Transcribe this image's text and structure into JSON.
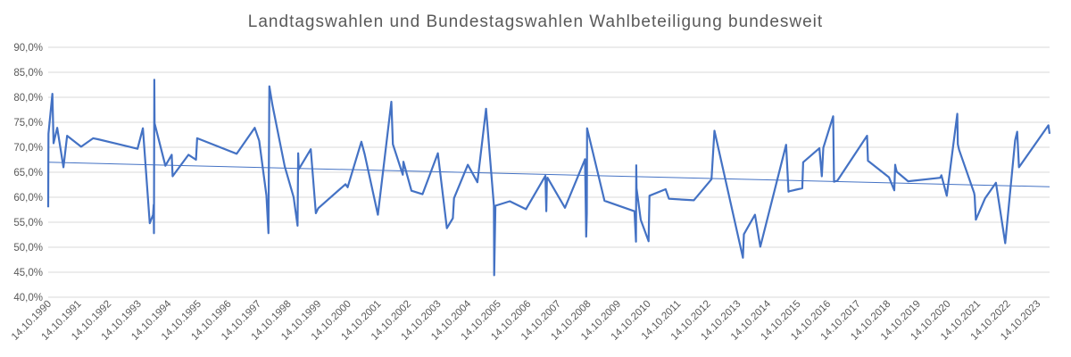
{
  "chart_data": {
    "type": "line",
    "title": "Landtagswahlen und Bundestagswahlen Wahlbeteiligung bundesweit",
    "xlabel": "",
    "ylabel": "",
    "ylim": [
      40,
      90
    ],
    "xlim": [
      1990.79,
      2024.2
    ],
    "grid": true,
    "y_tick_labels": [
      "40,0%",
      "45,0%",
      "50,0%",
      "55,0%",
      "60,0%",
      "65,0%",
      "70,0%",
      "75,0%",
      "80,0%",
      "85,0%",
      "90,0%"
    ],
    "x_tick_labels": [
      "14.10.1990",
      "14.10.1991",
      "14.10.1992",
      "14.10.1993",
      "14.10.1994",
      "14.10.1995",
      "14.10.1996",
      "14.10.1997",
      "14.10.1998",
      "14.10.1999",
      "14.10.2000",
      "14.10.2001",
      "14.10.2002",
      "14.10.2003",
      "14.10.2004",
      "14.10.2005",
      "14.10.2006",
      "14.10.2007",
      "14.10.2008",
      "14.10.2009",
      "14.10.2010",
      "14.10.2011",
      "14.10.2012",
      "14.10.2013",
      "14.10.2014",
      "14.10.2015",
      "14.10.2016",
      "14.10.2017",
      "14.10.2018",
      "14.10.2019",
      "14.10.2020",
      "14.10.2021",
      "14.10.2022",
      "14.10.2023"
    ],
    "series": [
      {
        "name": "Wahlbeteiligung",
        "x": [
          1990.79,
          1990.8,
          1990.93,
          1990.97,
          1991.09,
          1991.3,
          1991.42,
          1991.89,
          1992.29,
          1992.45,
          1993.77,
          1993.95,
          1994.18,
          1994.29,
          1994.31,
          1994.32,
          1994.33,
          1994.34,
          1994.7,
          1994.91,
          1994.94,
          1995.47,
          1995.72,
          1995.76,
          1997.08,
          1997.68,
          1997.83,
          1998.07,
          1998.14,
          1998.17,
          1998.27,
          1998.68,
          1998.98,
          1999.11,
          1999.13,
          1999.15,
          1999.55,
          1999.72,
          1999.8,
          2000.71,
          2000.78,
          2001.24,
          2001.35,
          2001.79,
          2002.24,
          2002.29,
          2002.62,
          2002.64,
          2002.91,
          2003.28,
          2003.79,
          2004.09,
          2004.29,
          2004.33,
          2004.79,
          2005.11,
          2005.4,
          2005.66,
          2005.67,
          2005.71,
          2006.19,
          2006.73,
          2007.38,
          2007.41,
          2007.43,
          2007.45,
          2008.03,
          2008.7,
          2008.74,
          2008.76,
          2008.77,
          2009.35,
          2010.35,
          2010.4,
          2010.41,
          2010.42,
          2010.56,
          2010.82,
          2010.85,
          2011.39,
          2011.5,
          2012.33,
          2012.92,
          2013.02,
          2013.97,
          2014.0,
          2014.37,
          2014.55,
          2015.41,
          2015.49,
          2015.51,
          2015.95,
          2015.98,
          2016.52,
          2016.6,
          2016.65,
          2016.98,
          2017.01,
          2017.12,
          2018.11,
          2018.14,
          2018.84,
          2019.02,
          2019.05,
          2019.06,
          2019.1,
          2019.48,
          2020.55,
          2020.59,
          2020.77,
          2021.12,
          2021.14,
          2021.18,
          2021.68,
          2021.7,
          2021.74,
          2022.05,
          2022.41,
          2022.72,
          2023.05,
          2023.12,
          2023.18,
          2024.16,
          2024.2
        ],
        "values": [
          58.0,
          72.7,
          80.7,
          70.8,
          73.9,
          66.0,
          72.3,
          70.1,
          71.8,
          71.6,
          69.7,
          73.8,
          54.8,
          56.5,
          58.5,
          52.8,
          83.5,
          74.8,
          66.3,
          68.5,
          64.2,
          68.5,
          67.5,
          71.8,
          68.7,
          73.9,
          71.3,
          60.4,
          52.8,
          82.2,
          78.5,
          66.2,
          60.0,
          54.3,
          68.8,
          65.6,
          69.6,
          56.8,
          57.8,
          62.6,
          62.0,
          71.1,
          68.6,
          56.5,
          79.1,
          70.6,
          64.5,
          67.1,
          61.3,
          60.6,
          68.8,
          53.8,
          55.8,
          59.8,
          66.5,
          63.0,
          77.7,
          58.3,
          44.4,
          58.3,
          59.2,
          57.6,
          64.3,
          57.2,
          63.6,
          63.9,
          57.9,
          67.6,
          52.1,
          56.8,
          73.8,
          59.3,
          57.2,
          51.1,
          66.4,
          61.8,
          55.5,
          51.2,
          60.3,
          61.6,
          59.7,
          59.4,
          63.6,
          73.3,
          47.9,
          52.6,
          56.5,
          50.1,
          70.5,
          61.1,
          61.2,
          61.8,
          67.0,
          69.8,
          64.2,
          69.9,
          76.2,
          63.1,
          63.3,
          72.3,
          67.3,
          64.0,
          61.4,
          66.5,
          66.1,
          65.1,
          63.2,
          63.9,
          64.4,
          60.3,
          76.7,
          70.6,
          69.5,
          60.9,
          60.3,
          55.5,
          59.8,
          62.9,
          50.8,
          71.4,
          73.1,
          66.0,
          74.4,
          72.7
        ]
      }
    ],
    "trendline": {
      "type": "linear",
      "start_value": 67.0,
      "end_value": 62.1
    }
  }
}
